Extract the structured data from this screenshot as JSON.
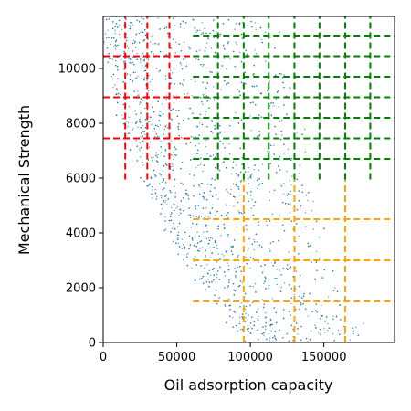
{
  "chart_data": {
    "type": "scatter",
    "xlabel": "Oil adsorption capacity",
    "ylabel": "Mechanical Strength",
    "xlim": [
      0,
      198000
    ],
    "ylim": [
      0,
      11900
    ],
    "xticks": [
      0,
      50000,
      100000,
      150000
    ],
    "xtick_labels": [
      "0",
      "50000",
      "100000",
      "150000"
    ],
    "yticks": [
      0,
      2000,
      4000,
      6000,
      8000,
      10000
    ],
    "ytick_labels": [
      "0",
      "2000",
      "4000",
      "6000",
      "8000",
      "10000"
    ],
    "grid": false,
    "legend": "none",
    "scatter_color": "#1f77b4",
    "scatter_description": "dense cloud of small points bounded on the lower-left by a convex frontier running from about (0, 11900) down to about (95000, 0), extending right to about 175000 at low strength",
    "scatter_samples": [
      {
        "x": 2000,
        "y": 11500
      },
      {
        "x": 5000,
        "y": 10200
      },
      {
        "x": 9000,
        "y": 9000
      },
      {
        "x": 14000,
        "y": 7800
      },
      {
        "x": 20000,
        "y": 6500
      },
      {
        "x": 27000,
        "y": 5300
      },
      {
        "x": 35000,
        "y": 4200
      },
      {
        "x": 45000,
        "y": 3100
      },
      {
        "x": 57000,
        "y": 2100
      },
      {
        "x": 72000,
        "y": 1100
      },
      {
        "x": 90000,
        "y": 200
      },
      {
        "x": 60000,
        "y": 9000
      },
      {
        "x": 100000,
        "y": 5000
      },
      {
        "x": 140000,
        "y": 2000
      },
      {
        "x": 170000,
        "y": 200
      }
    ],
    "segment_groups": [
      {
        "color": "#ff0000",
        "horizontal": [
          {
            "y": 10450,
            "x0": 0,
            "x1": 60000
          },
          {
            "y": 8950,
            "x0": 0,
            "x1": 60000
          },
          {
            "y": 7450,
            "x0": 0,
            "x1": 60000
          }
        ],
        "vertical": [
          {
            "x": 15000,
            "y0": 5950,
            "y1": 11900
          },
          {
            "x": 30000,
            "y0": 5950,
            "y1": 11900
          },
          {
            "x": 45000,
            "y0": 5950,
            "y1": 11900
          }
        ]
      },
      {
        "color": "#008000",
        "horizontal": [
          {
            "y": 11200,
            "x0": 61000,
            "x1": 198000
          },
          {
            "y": 10450,
            "x0": 61000,
            "x1": 198000
          },
          {
            "y": 9700,
            "x0": 61000,
            "x1": 198000
          },
          {
            "y": 8950,
            "x0": 61000,
            "x1": 198000
          },
          {
            "y": 8200,
            "x0": 61000,
            "x1": 198000
          },
          {
            "y": 7450,
            "x0": 61000,
            "x1": 198000
          },
          {
            "y": 6700,
            "x0": 61000,
            "x1": 198000
          }
        ],
        "vertical": [
          {
            "x": 78000,
            "y0": 5950,
            "y1": 11900
          },
          {
            "x": 95500,
            "y0": 5950,
            "y1": 11900
          },
          {
            "x": 112500,
            "y0": 5950,
            "y1": 11900
          },
          {
            "x": 130000,
            "y0": 5950,
            "y1": 11900
          },
          {
            "x": 147000,
            "y0": 5950,
            "y1": 11900
          },
          {
            "x": 164500,
            "y0": 5950,
            "y1": 11900
          },
          {
            "x": 181500,
            "y0": 5950,
            "y1": 11900
          }
        ]
      },
      {
        "color": "#ffa500",
        "horizontal": [
          {
            "y": 4500,
            "x0": 61000,
            "x1": 198000
          },
          {
            "y": 3000,
            "x0": 61000,
            "x1": 198000
          },
          {
            "y": 1500,
            "x0": 61000,
            "x1": 198000
          }
        ],
        "vertical": [
          {
            "x": 95500,
            "y0": 0,
            "y1": 5950
          },
          {
            "x": 130000,
            "y0": 0,
            "y1": 5950
          },
          {
            "x": 164500,
            "y0": 0,
            "y1": 5950
          }
        ]
      }
    ]
  }
}
